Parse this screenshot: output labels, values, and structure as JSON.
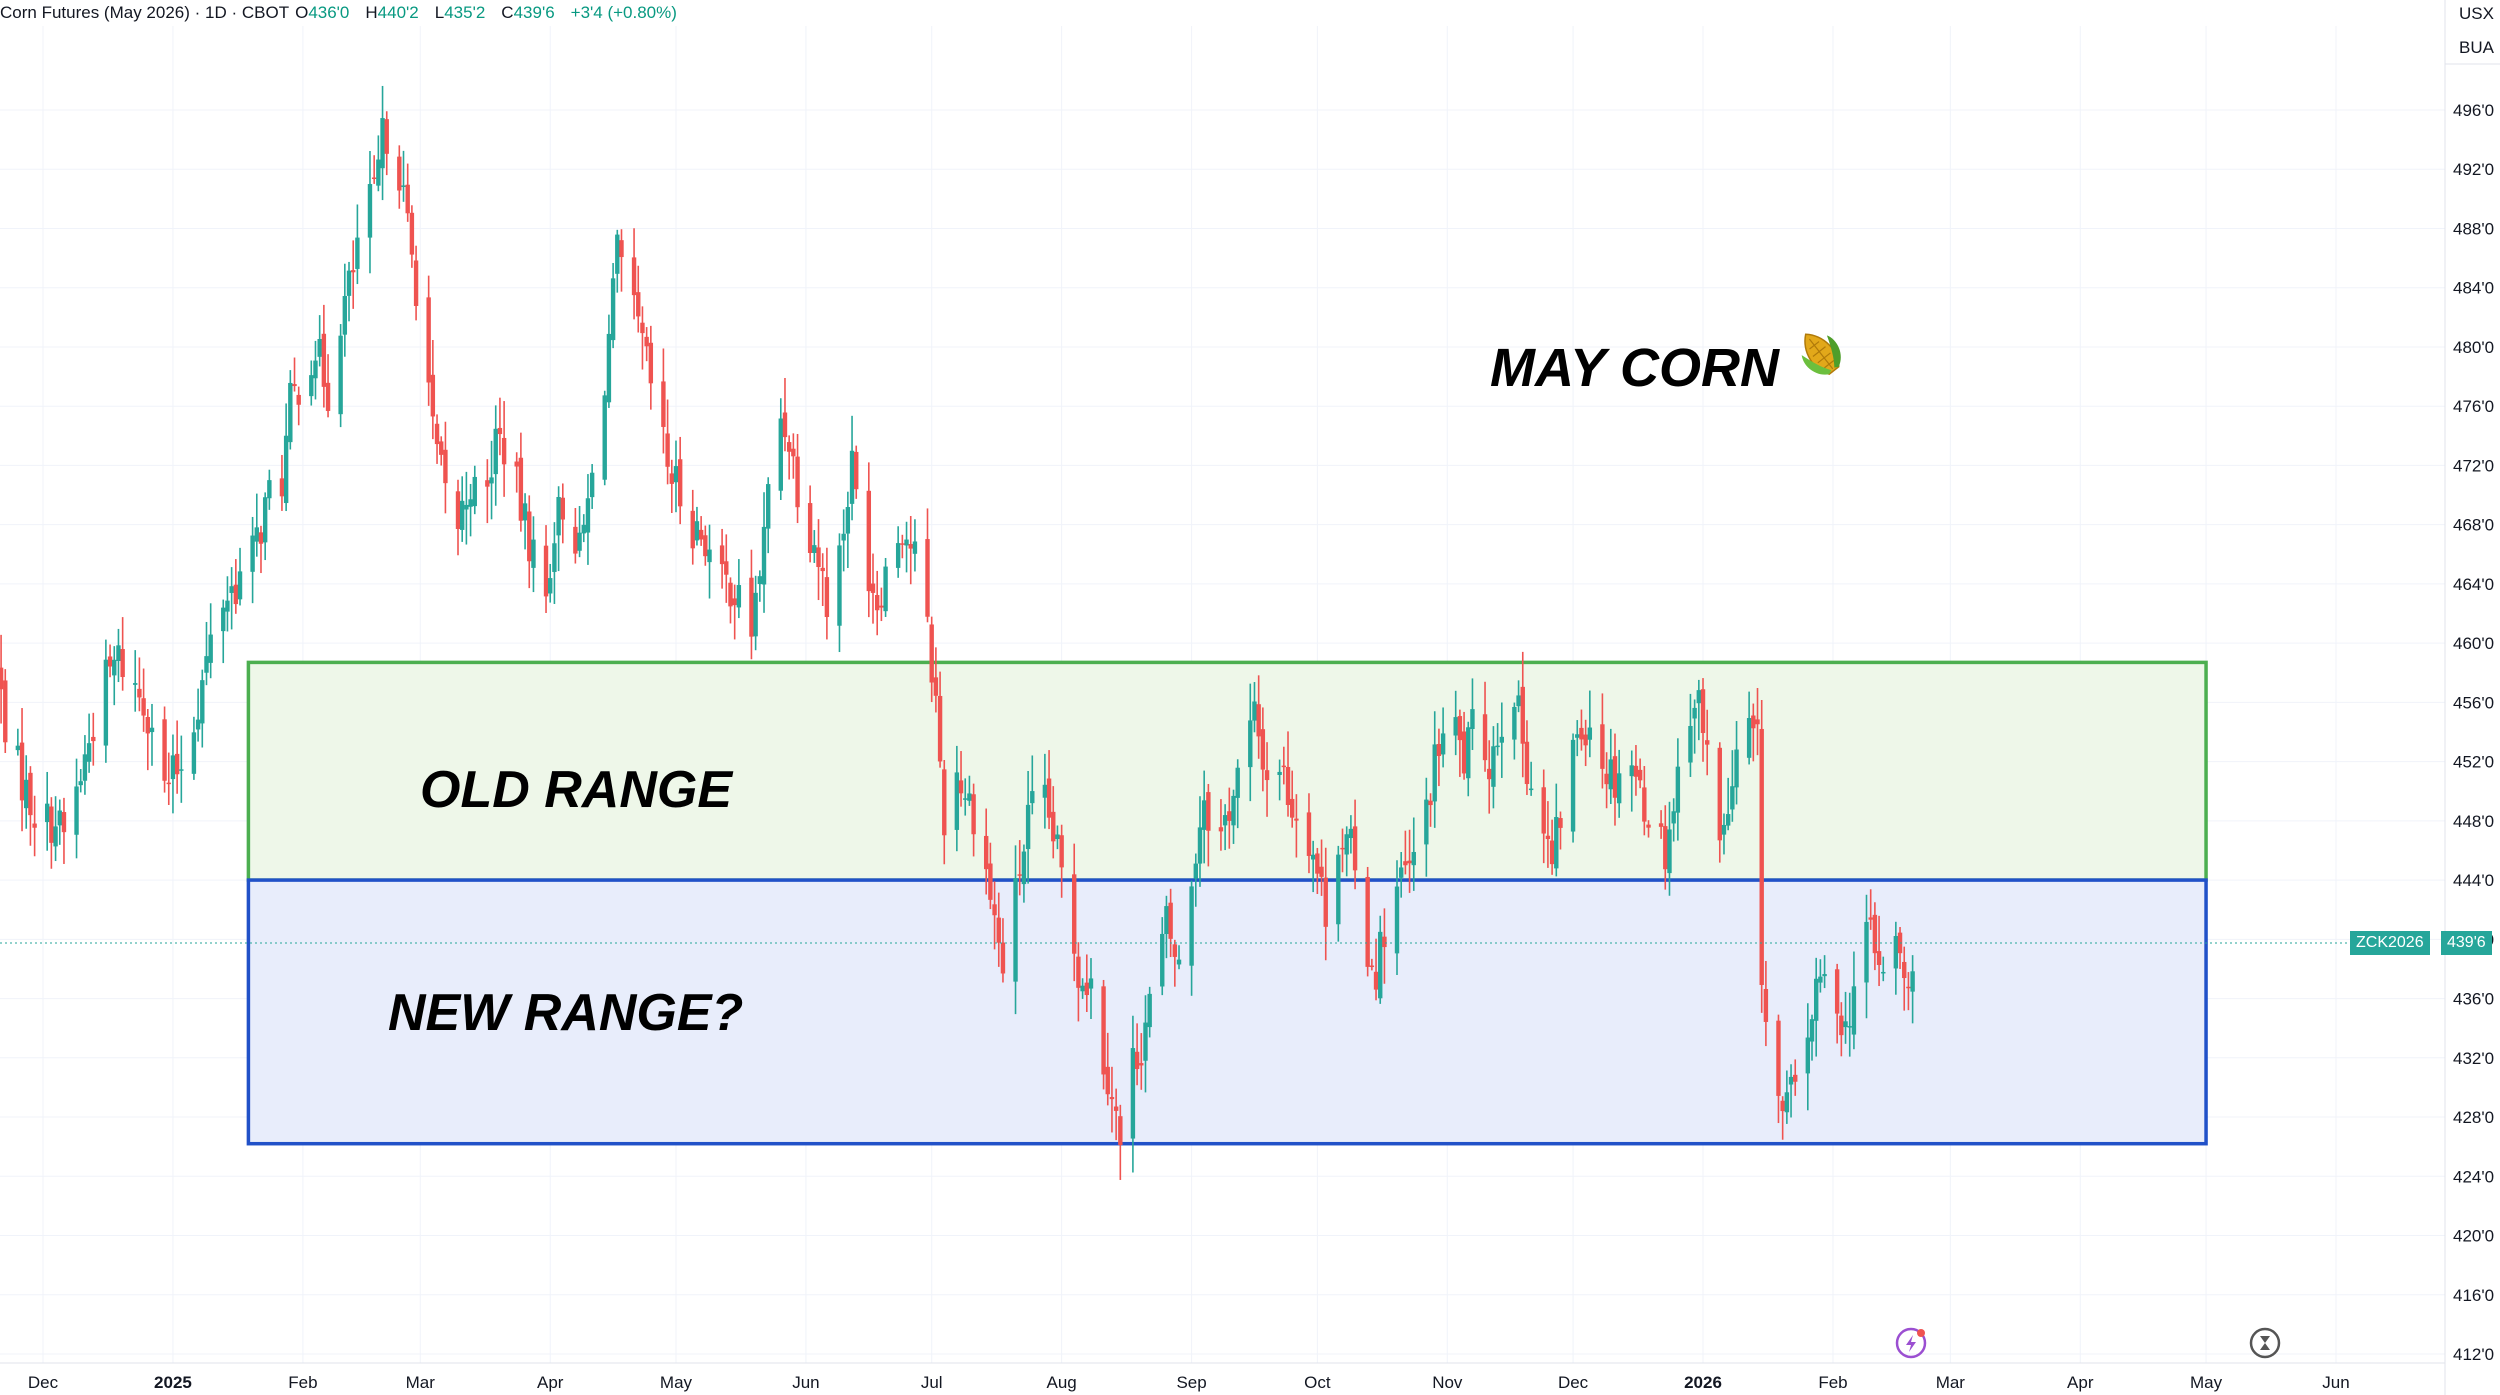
{
  "header": {
    "symbol_info": "Corn Futures (May 2026) · 1D · CBOT",
    "o_label": "O",
    "o_value": "436'0",
    "h_label": "H",
    "h_value": "440'2",
    "l_label": "L",
    "l_value": "435'2",
    "c_label": "C",
    "c_value": "439'6",
    "change": "+3'4 (+0.80%)"
  },
  "units": {
    "line1": "USX",
    "line2": "BUA"
  },
  "price_badge": {
    "symbol": "ZCK2026",
    "price": "439'6"
  },
  "annotations": {
    "title": "MAY CORN",
    "old_range": "OLD RANGE",
    "new_range": "NEW RANGE?"
  },
  "colors": {
    "up": "#26a69a",
    "down": "#ef5350",
    "old_range_border": "#4caf50",
    "old_range_fill": "#eef7e9",
    "new_range_border": "#2151c8",
    "new_range_fill": "#e8edfb"
  },
  "chart_data": {
    "type": "candlestick",
    "title": "",
    "xlabel": "",
    "ylabel": "",
    "ylim": [
      411.5,
      499.5
    ],
    "y_ticks": [
      496,
      492,
      488,
      484,
      480,
      476,
      472,
      468,
      464,
      460,
      456,
      452,
      448,
      444,
      440,
      436,
      432,
      428,
      424,
      420,
      416,
      412
    ],
    "y_tick_labels": [
      "496'0",
      "492'0",
      "488'0",
      "484'0",
      "480'0",
      "476'0",
      "472'0",
      "468'0",
      "464'0",
      "460'0",
      "456'0",
      "452'0",
      "448'0",
      "444'0",
      "440'0",
      "436'0",
      "432'0",
      "428'0",
      "424'0",
      "420'0",
      "416'0",
      "412'0"
    ],
    "x_ticks": [
      {
        "label": "Dec",
        "date": "2024-12-01",
        "bold": false
      },
      {
        "label": "2025",
        "date": "2025-01-01",
        "bold": true
      },
      {
        "label": "Feb",
        "date": "2025-02-01",
        "bold": false
      },
      {
        "label": "Mar",
        "date": "2025-03-01",
        "bold": false
      },
      {
        "label": "Apr",
        "date": "2025-04-01",
        "bold": false
      },
      {
        "label": "May",
        "date": "2025-05-01",
        "bold": false
      },
      {
        "label": "Jun",
        "date": "2025-06-01",
        "bold": false
      },
      {
        "label": "Jul",
        "date": "2025-07-01",
        "bold": false
      },
      {
        "label": "Aug",
        "date": "2025-08-01",
        "bold": false
      },
      {
        "label": "Sep",
        "date": "2025-09-01",
        "bold": false
      },
      {
        "label": "Oct",
        "date": "2025-10-01",
        "bold": false
      },
      {
        "label": "Nov",
        "date": "2025-11-01",
        "bold": false
      },
      {
        "label": "Dec",
        "date": "2025-12-01",
        "bold": false
      },
      {
        "label": "2026",
        "date": "2026-01-01",
        "bold": true
      },
      {
        "label": "Feb",
        "date": "2026-02-01",
        "bold": false
      },
      {
        "label": "Mar",
        "date": "2026-03-01",
        "bold": false
      },
      {
        "label": "Apr",
        "date": "2026-04-01",
        "bold": false
      },
      {
        "label": "May",
        "date": "2026-05-01",
        "bold": false
      },
      {
        "label": "Jun",
        "date": "2026-06-01",
        "bold": false
      }
    ],
    "last_price": 439.75,
    "ranges": [
      {
        "name": "OLD RANGE",
        "y_low": 444,
        "y_high": 458.7,
        "x_start": "2025-01-19",
        "x_end": "2026-05-01"
      },
      {
        "name": "NEW RANGE?",
        "y_low": 426.2,
        "y_high": 444,
        "x_start": "2025-01-19",
        "x_end": "2026-05-01"
      }
    ],
    "close_path": [
      [
        "2024-11-20",
        458
      ],
      [
        "2024-11-23",
        453
      ],
      [
        "2024-11-27",
        450
      ],
      [
        "2024-11-30",
        448
      ],
      [
        "2024-12-04",
        448
      ],
      [
        "2024-12-06",
        447
      ],
      [
        "2024-12-10",
        451
      ],
      [
        "2024-12-15",
        457
      ],
      [
        "2024-12-19",
        459
      ],
      [
        "2024-12-23",
        457
      ],
      [
        "2024-12-27",
        455
      ],
      [
        "2024-12-30",
        450
      ],
      [
        "2025-01-03",
        452
      ],
      [
        "2025-01-07",
        456
      ],
      [
        "2025-01-10",
        460
      ],
      [
        "2025-01-13",
        463
      ],
      [
        "2025-01-16",
        464
      ],
      [
        "2025-01-20",
        466
      ],
      [
        "2025-01-24",
        470
      ],
      [
        "2025-01-27",
        471
      ],
      [
        "2025-01-29",
        476
      ],
      [
        "2025-02-02",
        479
      ],
      [
        "2025-02-04",
        480
      ],
      [
        "2025-02-07",
        477
      ],
      [
        "2025-02-10",
        482
      ],
      [
        "2025-02-13",
        485
      ],
      [
        "2025-02-15",
        489
      ],
      [
        "2025-02-18",
        490
      ],
      [
        "2025-02-20",
        494
      ],
      [
        "2025-02-22",
        495
      ],
      [
        "2025-02-24",
        492
      ],
      [
        "2025-02-27",
        486
      ],
      [
        "2025-03-02",
        481
      ],
      [
        "2025-03-04",
        474
      ],
      [
        "2025-03-07",
        470
      ],
      [
        "2025-03-10",
        468
      ],
      [
        "2025-03-13",
        471
      ],
      [
        "2025-03-16",
        468
      ],
      [
        "2025-03-19",
        474
      ],
      [
        "2025-03-22",
        473
      ],
      [
        "2025-03-25",
        469
      ],
      [
        "2025-03-28",
        466
      ],
      [
        "2025-03-31",
        463
      ],
      [
        "2025-04-02",
        468
      ],
      [
        "2025-04-05",
        470
      ],
      [
        "2025-04-08",
        466
      ],
      [
        "2025-04-11",
        471
      ],
      [
        "2025-04-14",
        478
      ],
      [
        "2025-04-17",
        486
      ],
      [
        "2025-04-20",
        483
      ],
      [
        "2025-04-23",
        480
      ],
      [
        "2025-04-26",
        476
      ],
      [
        "2025-04-29",
        472
      ],
      [
        "2025-05-02",
        470
      ],
      [
        "2025-05-05",
        468
      ],
      [
        "2025-05-08",
        467
      ],
      [
        "2025-05-11",
        464
      ],
      [
        "2025-05-14",
        464
      ],
      [
        "2025-05-17",
        462
      ],
      [
        "2025-05-19",
        461
      ],
      [
        "2025-05-22",
        467
      ],
      [
        "2025-05-25",
        476
      ],
      [
        "2025-05-28",
        474
      ],
      [
        "2025-05-31",
        469
      ],
      [
        "2025-06-03",
        467
      ],
      [
        "2025-06-06",
        463
      ],
      [
        "2025-06-09",
        466
      ],
      [
        "2025-06-12",
        472
      ],
      [
        "2025-06-15",
        466
      ],
      [
        "2025-06-18",
        463
      ],
      [
        "2025-06-21",
        466
      ],
      [
        "2025-06-24",
        468
      ],
      [
        "2025-06-27",
        466
      ],
      [
        "2025-06-29",
        463
      ],
      [
        "2025-07-02",
        456
      ],
      [
        "2025-07-04",
        448
      ],
      [
        "2025-07-06",
        452
      ],
      [
        "2025-07-09",
        450
      ],
      [
        "2025-07-12",
        448
      ],
      [
        "2025-07-15",
        443
      ],
      [
        "2025-07-18",
        438
      ],
      [
        "2025-07-21",
        443
      ],
      [
        "2025-07-24",
        448
      ],
      [
        "2025-07-27",
        450
      ],
      [
        "2025-07-30",
        447
      ],
      [
        "2025-08-02",
        443
      ],
      [
        "2025-08-05",
        438
      ],
      [
        "2025-08-08",
        437
      ],
      [
        "2025-08-11",
        432
      ],
      [
        "2025-08-13",
        430
      ],
      [
        "2025-08-15",
        426
      ],
      [
        "2025-08-17",
        431
      ],
      [
        "2025-08-20",
        433
      ],
      [
        "2025-08-23",
        437
      ],
      [
        "2025-08-26",
        441
      ],
      [
        "2025-08-29",
        438
      ],
      [
        "2025-09-01",
        444
      ],
      [
        "2025-09-04",
        450
      ],
      [
        "2025-09-07",
        446
      ],
      [
        "2025-09-10",
        449
      ],
      [
        "2025-09-13",
        452
      ],
      [
        "2025-09-16",
        455
      ],
      [
        "2025-09-19",
        451
      ],
      [
        "2025-09-22",
        452
      ],
      [
        "2025-09-25",
        449
      ],
      [
        "2025-09-28",
        448
      ],
      [
        "2025-09-30",
        446
      ],
      [
        "2025-10-03",
        442
      ],
      [
        "2025-10-06",
        447
      ],
      [
        "2025-10-09",
        446
      ],
      [
        "2025-10-12",
        440
      ],
      [
        "2025-10-15",
        438
      ],
      [
        "2025-10-18",
        442
      ],
      [
        "2025-10-21",
        444
      ],
      [
        "2025-10-24",
        445
      ],
      [
        "2025-10-27",
        449
      ],
      [
        "2025-10-30",
        453
      ],
      [
        "2025-11-02",
        455
      ],
      [
        "2025-11-05",
        452
      ],
      [
        "2025-11-08",
        455
      ],
      [
        "2025-11-11",
        452
      ],
      [
        "2025-11-14",
        455
      ],
      [
        "2025-11-16",
        459
      ],
      [
        "2025-11-18",
        455
      ],
      [
        "2025-11-20",
        452
      ],
      [
        "2025-11-23",
        448
      ],
      [
        "2025-11-26",
        445
      ],
      [
        "2025-11-29",
        450
      ],
      [
        "2025-12-02",
        454
      ],
      [
        "2025-12-05",
        455
      ],
      [
        "2025-12-08",
        452
      ],
      [
        "2025-12-11",
        451
      ],
      [
        "2025-12-14",
        453
      ],
      [
        "2025-12-17",
        450
      ],
      [
        "2025-12-20",
        448
      ],
      [
        "2025-12-23",
        446
      ],
      [
        "2025-12-26",
        451
      ],
      [
        "2025-12-29",
        456
      ],
      [
        "2025-12-31",
        456
      ],
      [
        "2026-01-03",
        450
      ],
      [
        "2026-01-06",
        447
      ],
      [
        "2026-01-09",
        452
      ],
      [
        "2026-01-12",
        454
      ],
      [
        "2026-01-14",
        453
      ],
      [
        "2026-01-15",
        438
      ],
      [
        "2026-01-17",
        431
      ],
      [
        "2026-01-20",
        428
      ],
      [
        "2026-01-23",
        430
      ],
      [
        "2026-01-26",
        434
      ],
      [
        "2026-01-29",
        437
      ],
      [
        "2026-02-01",
        437
      ],
      [
        "2026-02-04",
        434
      ],
      [
        "2026-02-07",
        438
      ],
      [
        "2026-02-10",
        441
      ],
      [
        "2026-02-13",
        437
      ],
      [
        "2026-02-16",
        440
      ],
      [
        "2026-02-19",
        436
      ],
      [
        "2026-02-22",
        439.75
      ]
    ]
  }
}
